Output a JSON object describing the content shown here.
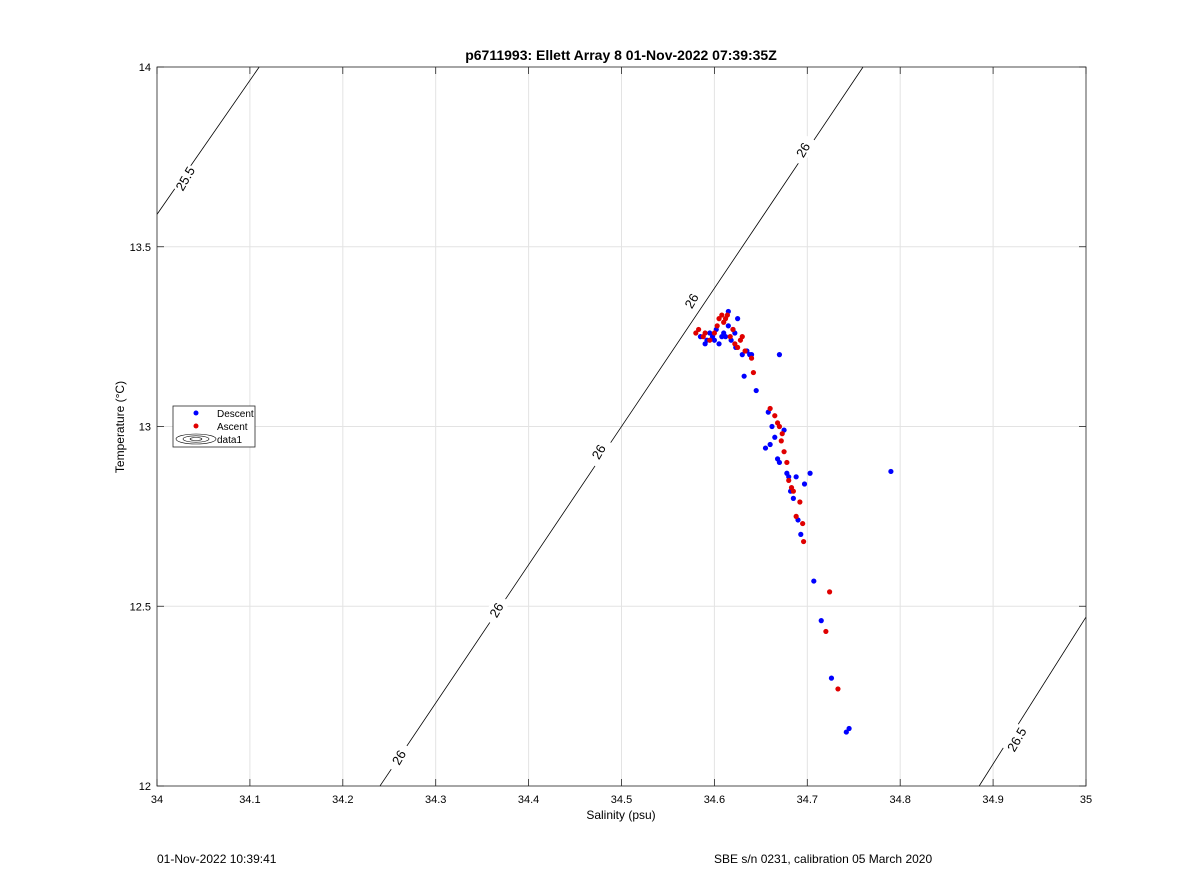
{
  "chart_data": {
    "type": "scatter",
    "title": "p6711993: Ellett Array 8 01-Nov-2022 07:39:35Z",
    "xlabel": "Salinity (psu)",
    "ylabel": "Temperature (°C)",
    "xlim": [
      34,
      35
    ],
    "ylim": [
      12,
      14
    ],
    "xticks": [
      "34",
      "34.1",
      "34.2",
      "34.3",
      "34.4",
      "34.5",
      "34.6",
      "34.7",
      "34.8",
      "34.9",
      "35"
    ],
    "yticks": [
      "12",
      "12.5",
      "13",
      "13.5",
      "14"
    ],
    "grid": true,
    "legend_position": "left",
    "series": [
      {
        "name": "Descent",
        "color": "#0000ff",
        "x": [
          34.585,
          34.59,
          34.592,
          34.595,
          34.598,
          34.6,
          34.602,
          34.605,
          34.608,
          34.61,
          34.612,
          34.615,
          34.615,
          34.618,
          34.62,
          34.622,
          34.623,
          34.625,
          34.63,
          34.632,
          34.635,
          34.638,
          34.64,
          34.645,
          34.655,
          34.658,
          34.66,
          34.662,
          34.665,
          34.668,
          34.67,
          34.67,
          34.675,
          34.678,
          34.68,
          34.682,
          34.685,
          34.688,
          34.69,
          34.693,
          34.697,
          34.703,
          34.707,
          34.715,
          34.726,
          34.742,
          34.745,
          34.79
        ],
        "y": [
          13.25,
          13.23,
          13.24,
          13.26,
          13.25,
          13.24,
          13.27,
          13.23,
          13.25,
          13.26,
          13.25,
          13.32,
          13.28,
          13.24,
          13.27,
          13.26,
          13.22,
          13.3,
          13.2,
          13.14,
          13.21,
          13.2,
          13.2,
          13.1,
          12.94,
          13.04,
          12.95,
          13.0,
          12.97,
          12.91,
          12.9,
          13.2,
          12.99,
          12.87,
          12.86,
          12.82,
          12.8,
          12.86,
          12.74,
          12.7,
          12.84,
          12.87,
          12.57,
          12.46,
          12.3,
          12.15,
          12.16,
          12.875
        ]
      },
      {
        "name": "Ascent",
        "color": "#e00000",
        "x": [
          34.58,
          34.583,
          34.588,
          34.59,
          34.595,
          34.6,
          34.603,
          34.605,
          34.608,
          34.61,
          34.612,
          34.614,
          34.617,
          34.62,
          34.622,
          34.625,
          34.628,
          34.63,
          34.633,
          34.64,
          34.642,
          34.66,
          34.665,
          34.668,
          34.67,
          34.673,
          34.672,
          34.675,
          34.678,
          34.68,
          34.683,
          34.685,
          34.688,
          34.692,
          34.695,
          34.696,
          34.724,
          34.72,
          34.733
        ],
        "y": [
          13.26,
          13.27,
          13.25,
          13.26,
          13.24,
          13.26,
          13.28,
          13.3,
          13.31,
          13.29,
          13.3,
          13.31,
          13.25,
          13.27,
          13.23,
          13.22,
          13.24,
          13.25,
          13.21,
          13.19,
          13.15,
          13.05,
          13.03,
          13.01,
          13.0,
          12.98,
          12.96,
          12.93,
          12.9,
          12.85,
          12.83,
          12.82,
          12.75,
          12.79,
          12.73,
          12.68,
          12.54,
          12.43,
          12.27
        ]
      },
      {
        "name": "data1",
        "color": "#000000",
        "contours": [
          {
            "label": "25.5",
            "x": [
              34.0,
              34.11
            ],
            "y": [
              13.59,
              14.0
            ]
          },
          {
            "label": "26",
            "x": [
              34.24,
              34.76
            ],
            "y": [
              12.0,
              14.0
            ]
          },
          {
            "label": "26.5",
            "x": [
              34.885,
              35.0
            ],
            "y": [
              12.0,
              12.47
            ]
          }
        ],
        "contour_labels": [
          {
            "text": "25.5",
            "x": 34.03,
            "y": 13.69
          },
          {
            "text": "26",
            "x": 34.26,
            "y": 12.08
          },
          {
            "text": "26",
            "x": 34.365,
            "y": 12.49
          },
          {
            "text": "26",
            "x": 34.475,
            "y": 12.93
          },
          {
            "text": "26",
            "x": 34.575,
            "y": 13.35
          },
          {
            "text": "26",
            "x": 34.695,
            "y": 13.77
          },
          {
            "text": "26.5",
            "x": 34.925,
            "y": 12.13
          }
        ]
      }
    ]
  },
  "footer": {
    "left": "01-Nov-2022 10:39:41",
    "right": "SBE s/n 0231, calibration 05 March 2020"
  }
}
